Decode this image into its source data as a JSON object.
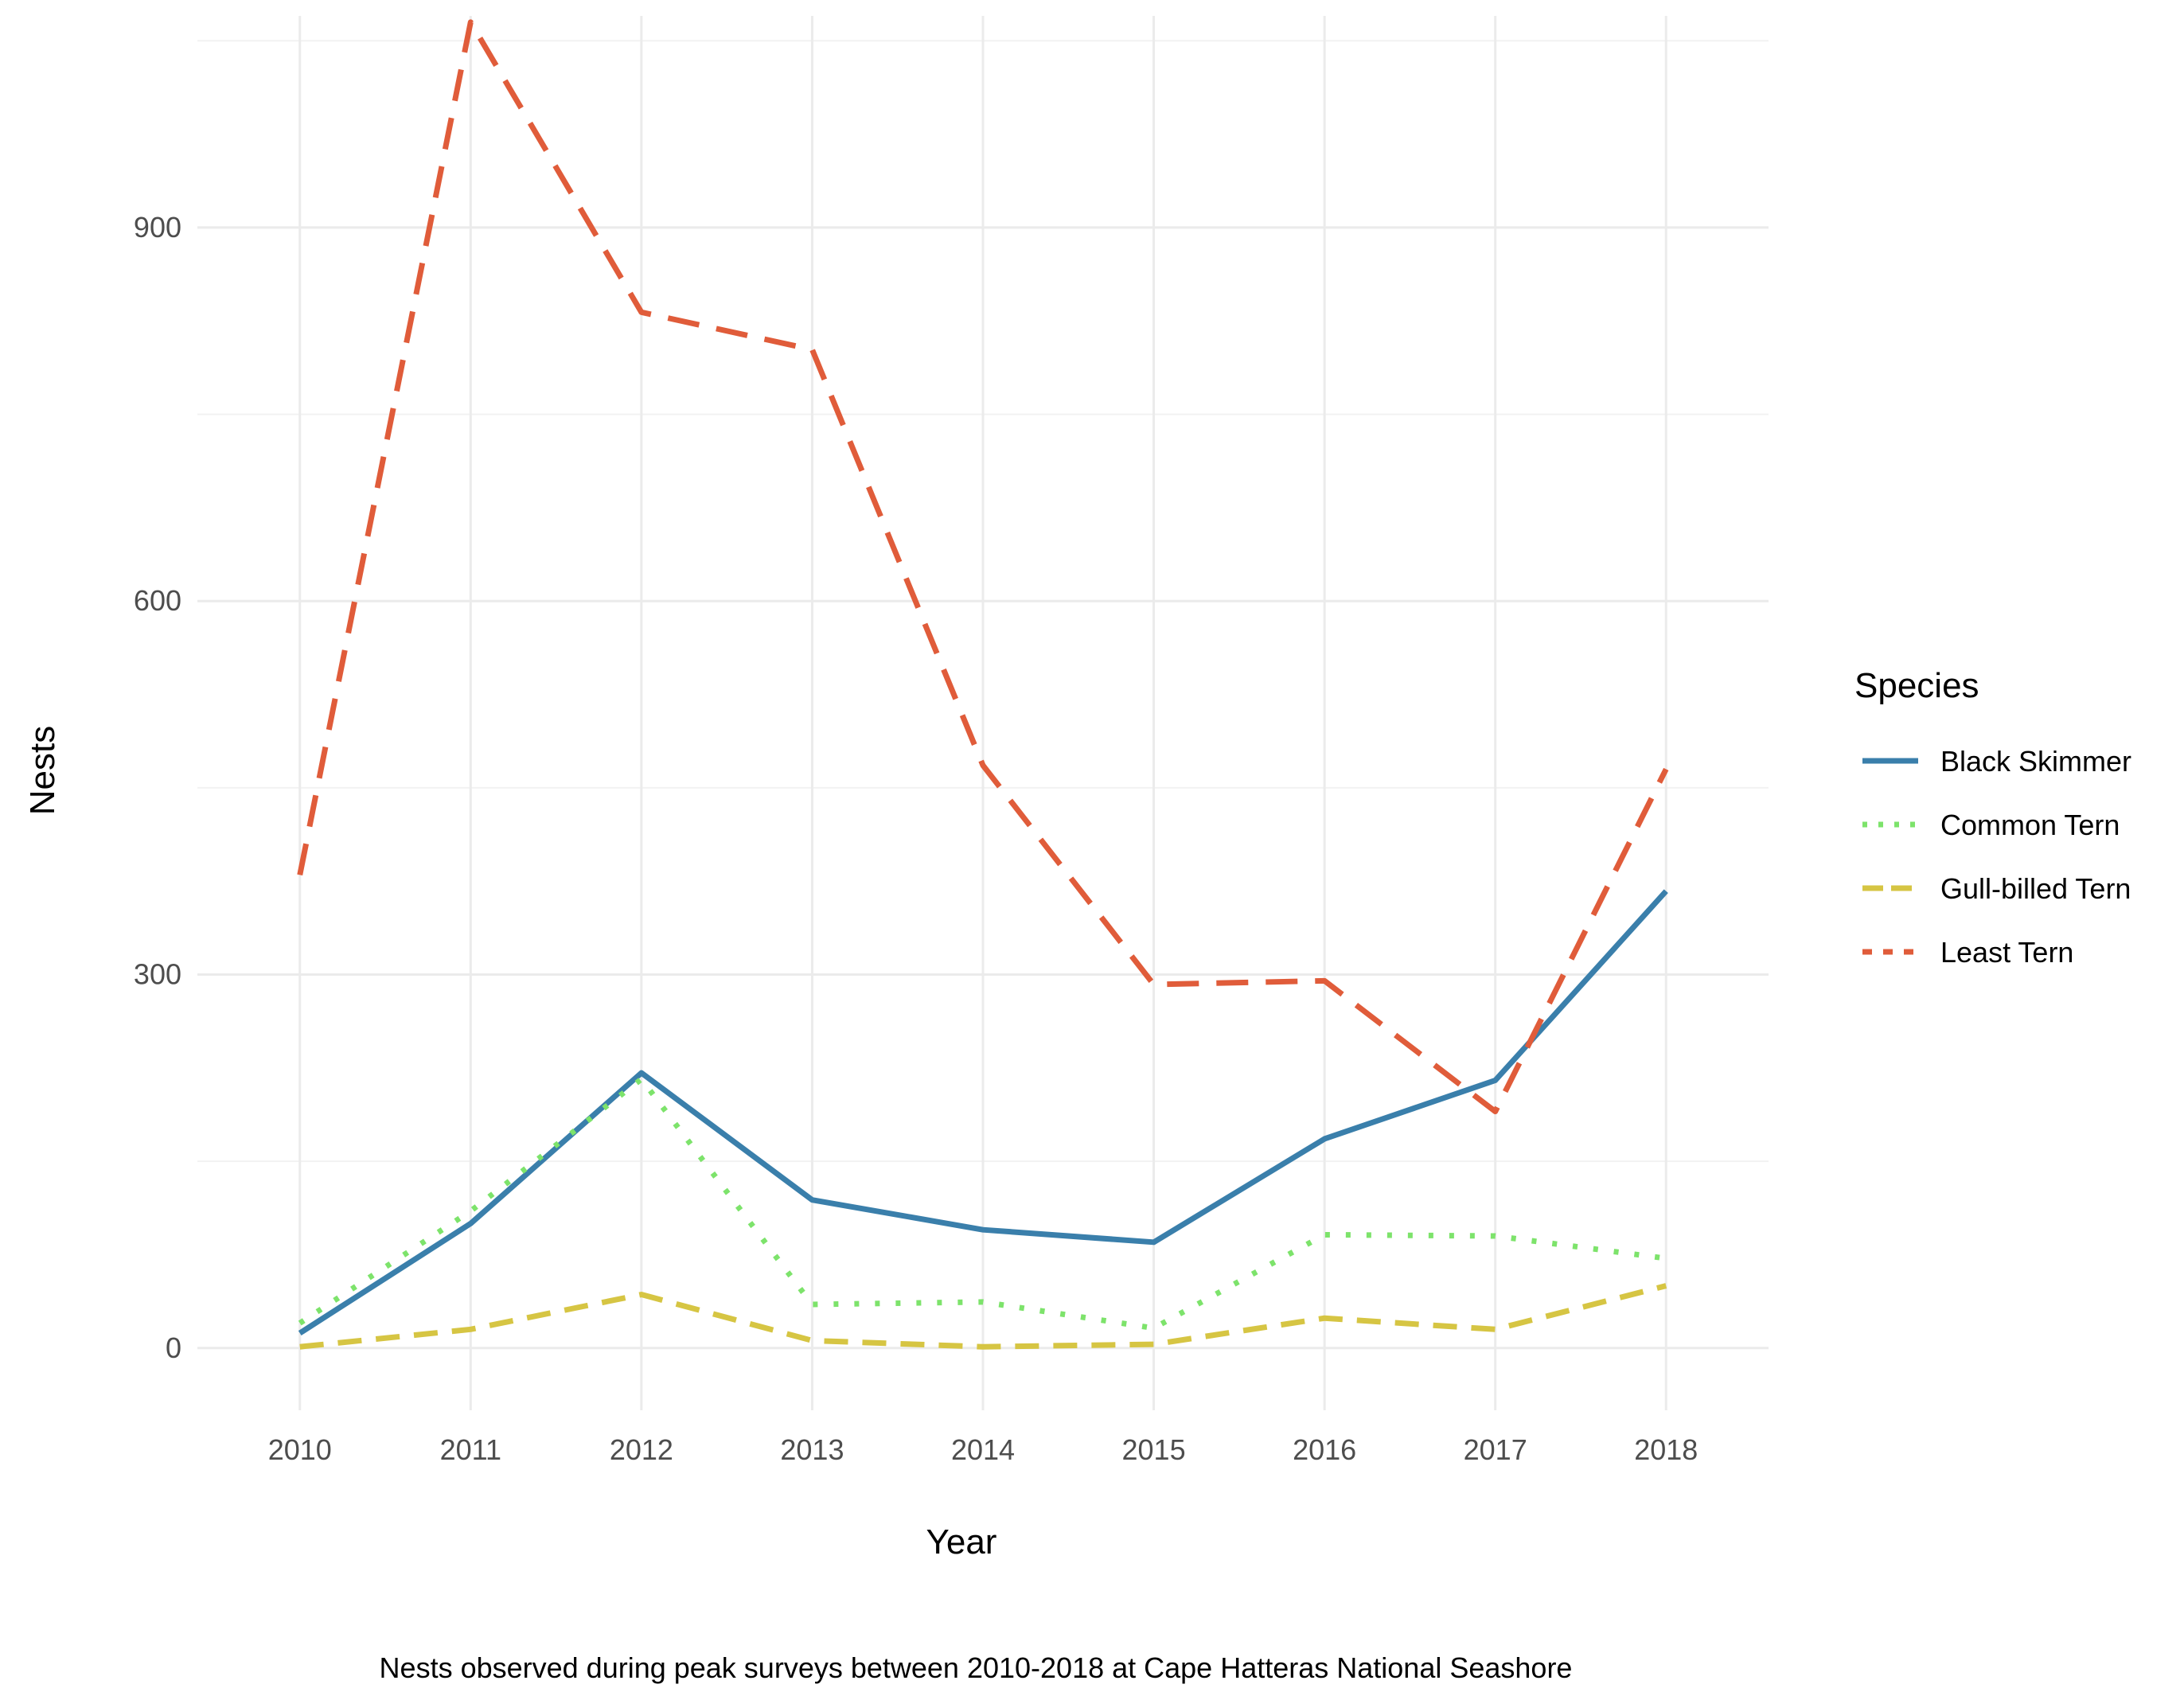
{
  "chart_data": {
    "type": "line",
    "x": [
      2010,
      2011,
      2012,
      2013,
      2014,
      2015,
      2016,
      2017,
      2018
    ],
    "xlabel": "Year",
    "ylabel": "Nests",
    "ylim": [
      -50,
      1070
    ],
    "yticks": [
      0,
      300,
      600,
      900
    ],
    "grid": true,
    "legend": {
      "title": "Species",
      "position": "right"
    },
    "caption": "Nests observed during peak surveys between 2010-2018 at Cape Hatteras National Seashore",
    "series": [
      {
        "name": "Black Skimmer",
        "color": "#3a7fab",
        "dash": "solid",
        "values": [
          12,
          100,
          221,
          119,
          95,
          85,
          168,
          215,
          367
        ]
      },
      {
        "name": "Common Tern",
        "color": "#7de36b",
        "dash": "dotted",
        "values": [
          20,
          110,
          216,
          35,
          37,
          16,
          91,
          90,
          72
        ]
      },
      {
        "name": "Gull-billed Tern",
        "color": "#d6c543",
        "dash": "dashed",
        "values": [
          1,
          15,
          43,
          6,
          1,
          3,
          24,
          15,
          50
        ]
      },
      {
        "name": "Least Tern",
        "color": "#e05c3a",
        "dash": "longdash",
        "values": [
          380,
          1065,
          832,
          802,
          468,
          292,
          295,
          190,
          465
        ]
      }
    ]
  }
}
